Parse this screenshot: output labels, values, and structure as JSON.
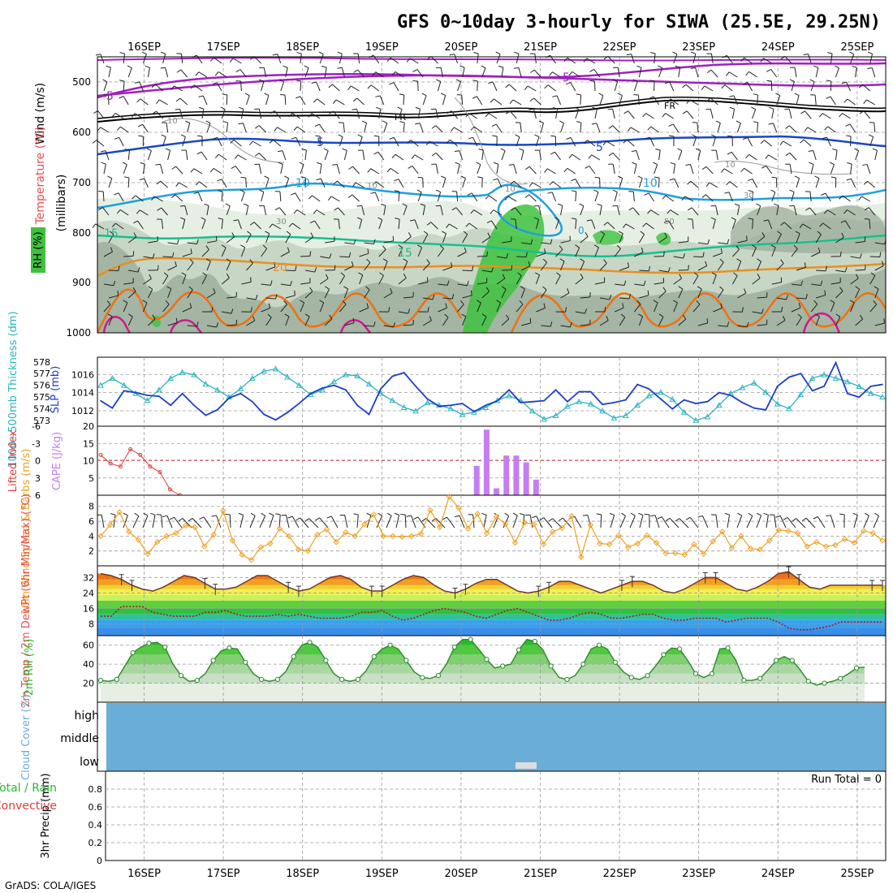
{
  "title": "GFS 0~10day 3-hourly for SIWA (25.5E, 29.25N)",
  "footer": "GrADS: COLA/IGES",
  "colors": {
    "rh_green": "#3ec23e",
    "rh_light": "#e6efe4",
    "rh_mid": "#bfcfbe",
    "rh_dark": "#8fa08e",
    "thickness": "#2bb5be",
    "slp": "#1b3fc8",
    "lifted": "#e03a3a",
    "cape": "#c47ef0",
    "wind_speed": "#f0a020",
    "barb": "#7a5a40",
    "cloud": "#6aaed8",
    "precip_label": "#2db82d"
  },
  "date_labels": [
    "16SEP",
    "17SEP",
    "18SEP",
    "19SEP",
    "20SEP",
    "21SEP",
    "22SEP",
    "23SEP",
    "24SEP",
    "25SEP"
  ],
  "profile_panel": {
    "y_labels": [
      "500",
      "600",
      "700",
      "800",
      "900",
      "1000"
    ],
    "ylabel_parts": [
      "Wind (m/s)",
      "Temperature (°C)",
      "(millibars)",
      "RH (%)"
    ],
    "contour_labels": [
      "-5",
      "-5",
      "FR",
      "FR",
      "5",
      "5",
      "10",
      "10",
      "15",
      "15",
      "20",
      "10",
      "10",
      "30",
      "50",
      "10",
      "30",
      "0",
      "10"
    ]
  },
  "chart_data": [
    {
      "type": "line",
      "title": "1000-500mb Thickness (dm) / SLP (mb)",
      "ylabel_left": "1000~500mb Thickness (dm)",
      "ylabel_right": "SLP (mb)",
      "left_ticks": [
        "578",
        "577",
        "576",
        "575",
        "574",
        "573"
      ],
      "right_ticks": [
        "1016",
        "1014",
        "1012"
      ],
      "ylim_thickness": [
        572.5,
        578.4
      ],
      "ylim_slp": [
        1010.3,
        1017.9
      ],
      "series": [
        {
          "name": "Thickness",
          "values": [
            576.0,
            576.6,
            576.0,
            575.3,
            574.7,
            575.6,
            576.6,
            577.1,
            576.9,
            576.1,
            575.6,
            575.0,
            575.7,
            576.6,
            577.2,
            577.4,
            576.7,
            576.0,
            575.2,
            575.6,
            576.3,
            576.9,
            576.8,
            576.1,
            575.3,
            574.7,
            574.1,
            573.8,
            574.5,
            574.3,
            574.0,
            573.5,
            573.7,
            574.1,
            574.7,
            575.1,
            574.7,
            573.8,
            573.1,
            573.4,
            574.2,
            574.6,
            574.4,
            573.8,
            573.2,
            573.4,
            574.3,
            575.1,
            575.4,
            574.8,
            573.7,
            573.0,
            573.3,
            574.3,
            575.3,
            575.8,
            576.2,
            575.4,
            574.4,
            574.0,
            575.2,
            576.6,
            576.9,
            576.6,
            576.3,
            575.9,
            575.3,
            575.0
          ]
        },
        {
          "name": "SLP",
          "values": [
            1013.1,
            1012.3,
            1014.2,
            1014.0,
            1013.7,
            1013.6,
            1012.6,
            1013.9,
            1012.6,
            1011.5,
            1012.1,
            1013.4,
            1013.9,
            1013.0,
            1011.6,
            1011.0,
            1011.8,
            1012.8,
            1013.9,
            1014.5,
            1014.8,
            1014.3,
            1012.6,
            1011.6,
            1014.4,
            1015.8,
            1016.2,
            1014.7,
            1013.3,
            1012.5,
            1012.6,
            1012.8,
            1011.9,
            1012.6,
            1013.1,
            1014.3,
            1012.9,
            1013.0,
            1013.1,
            1014.3,
            1013.0,
            1014.1,
            1014.1,
            1012.7,
            1012.9,
            1013.2,
            1014.9,
            1014.4,
            1013.3,
            1012.2,
            1013.2,
            1012.8,
            1013.0,
            1014.0,
            1013.7,
            1012.9,
            1012.3,
            1012.1,
            1014.7,
            1015.7,
            1016.1,
            1014.2,
            1014.7,
            1017.3,
            1013.9,
            1013.5,
            1014.7,
            1014.9
          ]
        }
      ]
    },
    {
      "type": "bar",
      "title": "Lifted Index / CAPE (J/kg)",
      "ylabel_left": "Lifted Index",
      "ylabel_right": "CAPE (J/kg)",
      "li_ticks": [
        "-6",
        "-3",
        "0",
        "3",
        "6"
      ],
      "cape_ticks": [
        "20",
        "15",
        "10",
        "5"
      ],
      "ylim_cape": [
        0,
        20
      ],
      "ylim_li": [
        -6,
        6
      ],
      "cape_bars": [
        {
          "t": 38,
          "value": 8.5
        },
        {
          "t": 39,
          "value": 19
        },
        {
          "t": 40,
          "value": 2
        },
        {
          "t": 41,
          "value": 11.5
        },
        {
          "t": 42,
          "value": 11.5
        },
        {
          "t": 43,
          "value": 9.5
        },
        {
          "t": 44,
          "value": 4.5
        }
      ],
      "lifted_index": [
        {
          "t": 0,
          "value": -1
        },
        {
          "t": 1,
          "value": 0.5
        },
        {
          "t": 2,
          "value": 1
        },
        {
          "t": 3,
          "value": -2
        },
        {
          "t": 4,
          "value": -1
        },
        {
          "t": 5,
          "value": 1
        },
        {
          "t": 6,
          "value": 2
        },
        {
          "t": 7,
          "value": 5
        },
        {
          "t": 8,
          "value": 6
        }
      ]
    },
    {
      "type": "line",
      "title": "10m Wind Speed (m/s) & Barbs",
      "ylabel": "10m Wind Speed & Barbs (m/s)",
      "y_ticks": [
        "8",
        "6",
        "4",
        "2"
      ],
      "ylim": [
        0,
        9.5
      ],
      "series": [
        {
          "name": "Wind speed",
          "values": [
            4.0,
            5.5,
            7.2,
            4.6,
            3.5,
            1.6,
            3.2,
            4.0,
            4.4,
            5.4,
            5.2,
            2.6,
            4.2,
            7.4,
            3.4,
            1.5,
            0.8,
            2.5,
            3.0,
            5.0,
            4.0,
            2.2,
            2.0,
            4.2,
            4.9,
            3.2,
            4.5,
            4.0,
            5.6,
            6.9,
            4.0,
            4.0,
            3.9,
            4.0,
            4.3,
            7.5,
            5.2,
            9.3,
            7.8,
            5.0,
            7.0,
            4.4,
            6.6,
            5.6,
            3.1,
            5.8,
            5.6,
            2.9,
            4.6,
            5.1,
            6.7,
            1.2,
            5.5,
            3.0,
            2.9,
            4.1,
            2.5,
            3.0,
            4.1,
            3.1,
            1.7,
            1.7,
            1.5,
            2.9,
            1.6,
            3.3,
            4.6,
            2.4,
            4.0,
            2.3,
            2.2,
            3.4,
            4.8,
            4.7,
            4.4,
            2.6,
            3.2,
            2.6,
            2.8,
            3.6,
            3.1,
            4.7,
            4.4,
            3.4
          ]
        }
      ]
    },
    {
      "type": "line",
      "title": "2m Temp / 2m DewPt (6hr Min/Max) (°C)",
      "ylabel": "2m Temp / 2m DewPt (6hr Min/Max) (°C)",
      "y_ticks": [
        "32",
        "24",
        "16",
        "8"
      ],
      "ylim": [
        2,
        38
      ],
      "series": [
        {
          "name": "2m Temp",
          "values": [
            34,
            33,
            31,
            28,
            26,
            25,
            27,
            30,
            33,
            32,
            29,
            26,
            26,
            27,
            30,
            33,
            33,
            30,
            27,
            25,
            26,
            29,
            32,
            33,
            31,
            27,
            25,
            25,
            28,
            31,
            33,
            32,
            28,
            25,
            24,
            26,
            29,
            31,
            31,
            28,
            25,
            24,
            25,
            27,
            30,
            30,
            28,
            26,
            24,
            26,
            28,
            30,
            30,
            28,
            25,
            24,
            26,
            29,
            32,
            32,
            29,
            26,
            25,
            27,
            30,
            34,
            35,
            31,
            27,
            26,
            28,
            28,
            28,
            28,
            28,
            28
          ]
        },
        {
          "name": "2m DewPt",
          "values": [
            12,
            12,
            17,
            17,
            17,
            14,
            13,
            12,
            12,
            12,
            14,
            14,
            15,
            13,
            12,
            12,
            12,
            13,
            12,
            13,
            12,
            11,
            11,
            11,
            12,
            14,
            14,
            15,
            12,
            10,
            11,
            13,
            15,
            16,
            15,
            14,
            12,
            11,
            13,
            15,
            16,
            14,
            12,
            10,
            10,
            11,
            13,
            14,
            13,
            11,
            11,
            12,
            13,
            13,
            11,
            10,
            10,
            11,
            11,
            11,
            9,
            10,
            11,
            11,
            11,
            9,
            6,
            5,
            5,
            6,
            7,
            9,
            9,
            9,
            9,
            9
          ]
        }
      ]
    },
    {
      "type": "area",
      "title": "2m RH (%)",
      "ylabel": "2m RH (%)",
      "y_ticks": [
        "60",
        "40",
        "20"
      ],
      "ylim": [
        0,
        70
      ],
      "series": [
        {
          "name": "2m RH",
          "values": [
            23,
            22,
            24,
            38,
            52,
            58,
            62,
            63,
            58,
            40,
            28,
            22,
            23,
            30,
            44,
            54,
            57,
            56,
            42,
            30,
            24,
            22,
            24,
            32,
            48,
            60,
            63,
            58,
            44,
            30,
            24,
            22,
            24,
            33,
            48,
            56,
            60,
            56,
            44,
            32,
            26,
            25,
            28,
            40,
            58,
            66,
            66,
            56,
            45,
            36,
            38,
            40,
            55,
            66,
            64,
            55,
            38,
            26,
            24,
            28,
            40,
            56,
            60,
            56,
            42,
            32,
            26,
            24,
            28,
            38,
            50,
            57,
            56,
            44,
            30,
            26,
            30,
            56,
            57,
            44,
            23,
            23,
            25,
            34,
            44,
            48,
            44,
            34,
            22,
            18,
            20,
            22,
            25,
            30,
            36,
            37
          ]
        }
      ]
    },
    {
      "type": "table",
      "title": "Cloud Cover (%)",
      "ylabel": "Cloud Cover (%)",
      "levels": [
        "high",
        "middle",
        "low"
      ]
    },
    {
      "type": "bar",
      "title": "3hr Precip (mm) Total / Rain Convective",
      "ylabel": "3hr Precip (mm)",
      "legend": [
        "Total / Rain",
        "Convective"
      ],
      "y_ticks": [
        "0.8",
        "0.6",
        "0.4",
        "0.2",
        "0"
      ],
      "ylim": [
        0,
        1
      ],
      "run_total_label": "Run Total = 0",
      "values": []
    }
  ]
}
